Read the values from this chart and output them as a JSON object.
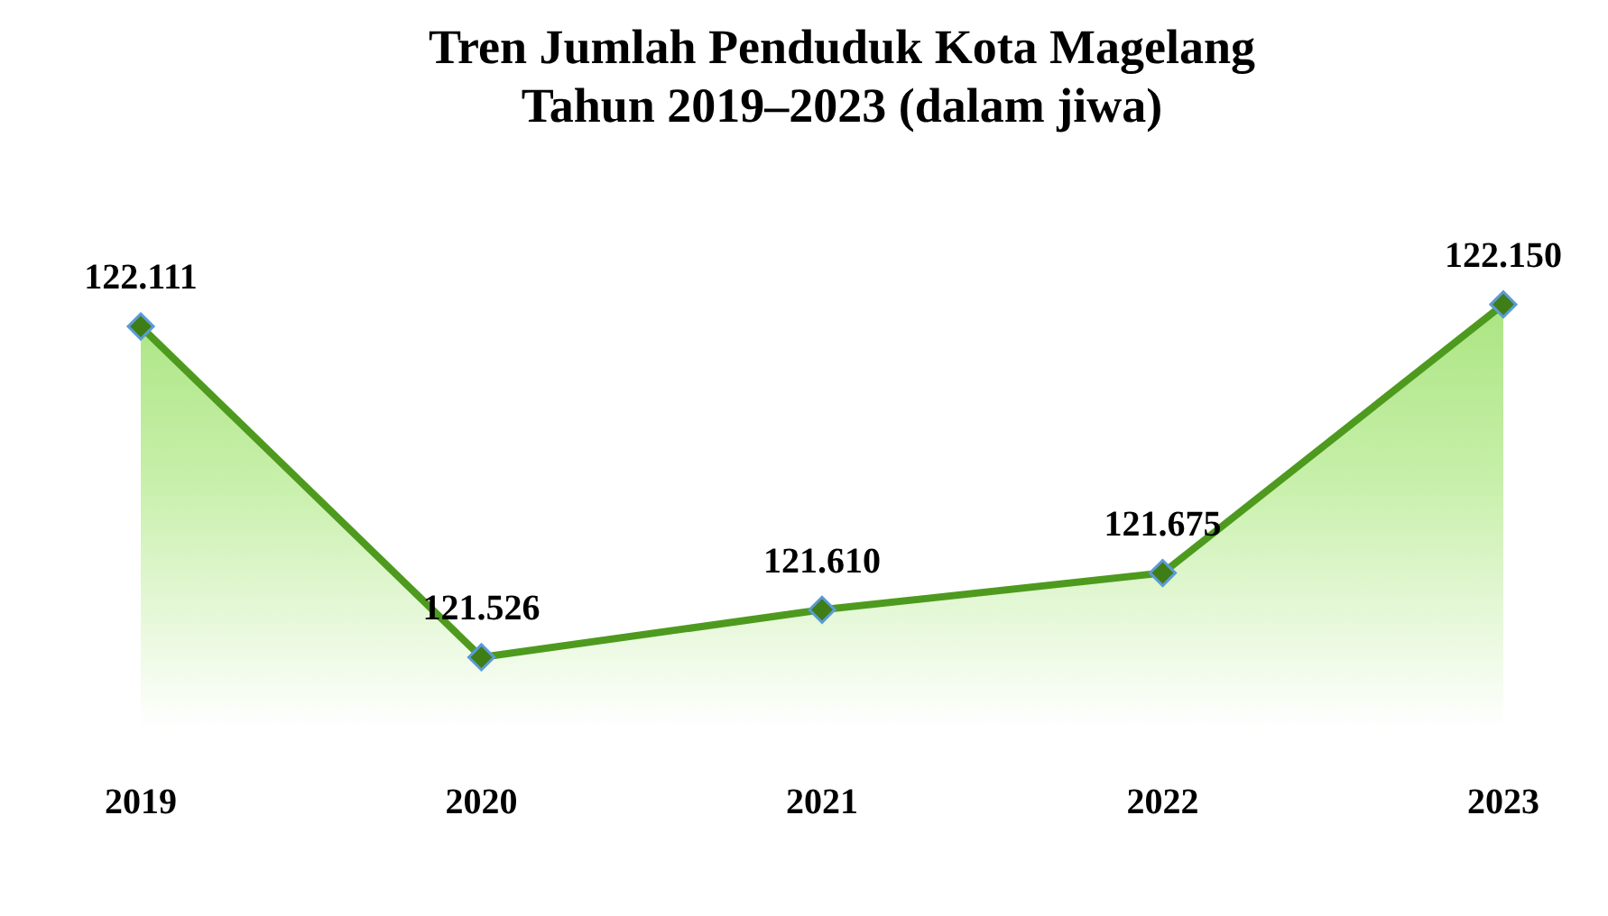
{
  "chart_data": {
    "type": "area",
    "title": "Tren Jumlah Penduduk Kota Magelang\nTahun 2019–2023 (dalam jiwa)",
    "categories": [
      "2019",
      "2020",
      "2021",
      "2022",
      "2023"
    ],
    "series": [
      {
        "color": "#4e9a1e",
        "values": [
          122111,
          121526,
          121610,
          121675,
          122150
        ],
        "value_labels": [
          "122.111",
          "121.526",
          "121.610",
          "121.675",
          "122.150"
        ]
      }
    ],
    "marker": "diamond",
    "grid": false,
    "legend": false
  }
}
